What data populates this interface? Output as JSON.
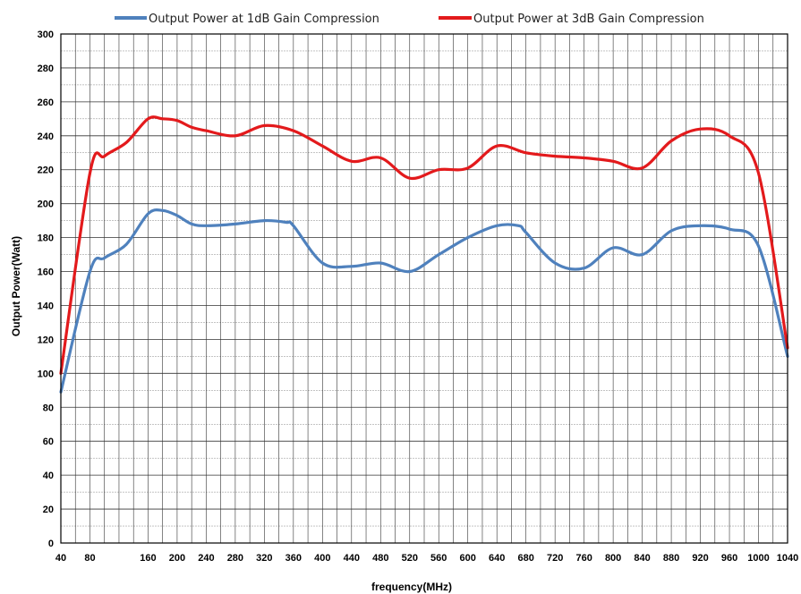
{
  "chart_data": {
    "type": "line",
    "title": "",
    "xlabel": "frequency(MHz)",
    "ylabel": "Output Power(Watt)",
    "xlim": [
      40,
      1040
    ],
    "ylim": [
      0,
      300
    ],
    "x_ticks": [
      40,
      80,
      160,
      200,
      240,
      280,
      320,
      360,
      400,
      440,
      480,
      520,
      560,
      600,
      640,
      680,
      720,
      760,
      800,
      840,
      880,
      920,
      960,
      1000,
      1040
    ],
    "y_ticks": [
      0,
      20,
      40,
      60,
      80,
      100,
      120,
      140,
      160,
      180,
      200,
      220,
      240,
      260,
      280,
      300
    ],
    "grid": true,
    "legend_position": "top",
    "series": [
      {
        "name": "Output Power at 1dB Gain Compression",
        "color": "#4f81bd",
        "x": [
          40,
          80,
          100,
          130,
          160,
          180,
          200,
          220,
          240,
          280,
          320,
          350,
          360,
          400,
          440,
          480,
          520,
          560,
          600,
          640,
          670,
          680,
          720,
          760,
          800,
          840,
          880,
          920,
          960,
          1000,
          1040
        ],
        "y": [
          89,
          160,
          168,
          176,
          194,
          196,
          193,
          188,
          187,
          188,
          190,
          189,
          187,
          165,
          163,
          165,
          160,
          170,
          180,
          187,
          187,
          183,
          165,
          162,
          174,
          170,
          184,
          187,
          185,
          175,
          110
        ]
      },
      {
        "name": "Output Power at 3dB Gain Compression",
        "color": "#e31a1c",
        "x": [
          40,
          80,
          100,
          130,
          160,
          180,
          200,
          220,
          240,
          280,
          320,
          360,
          400,
          440,
          480,
          520,
          560,
          600,
          640,
          680,
          720,
          760,
          800,
          840,
          880,
          920,
          960,
          1000,
          1040
        ],
        "y": [
          100,
          218,
          228,
          236,
          250,
          250,
          249,
          245,
          243,
          240,
          246,
          243,
          234,
          225,
          227,
          215,
          220,
          221,
          234,
          230,
          228,
          227,
          225,
          221,
          237,
          244,
          240,
          218,
          115
        ]
      }
    ]
  }
}
